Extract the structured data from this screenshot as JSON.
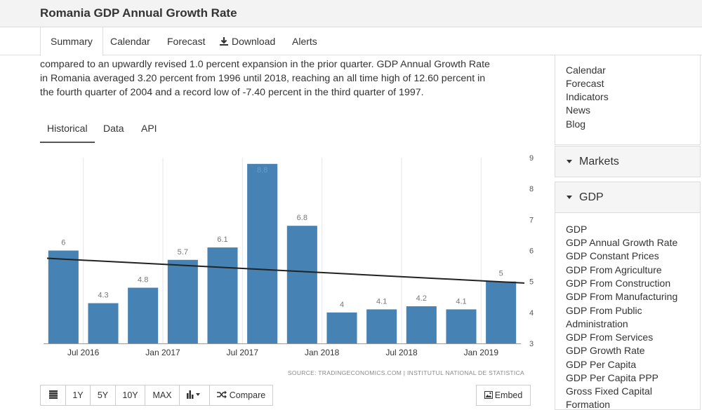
{
  "header": {
    "title": "Romania GDP Annual Growth Rate"
  },
  "tabs": [
    {
      "label": "Summary"
    },
    {
      "label": "Calendar"
    },
    {
      "label": "Forecast"
    },
    {
      "label": "Download"
    },
    {
      "label": "Alerts"
    }
  ],
  "summary": {
    "line1": "compared to an upwardly revised 1.0 percent expansion in the prior quarter. GDP Annual Growth Rate",
    "line2": "in Romania averaged 3.20 percent from 1996 until 2018, reaching an all time high of 12.60 percent in",
    "line3": "the fourth quarter of 2004 and a record low of -7.40 percent in the third quarter of 1997."
  },
  "chart_tabs": [
    {
      "label": "Historical"
    },
    {
      "label": "Data"
    },
    {
      "label": "API"
    }
  ],
  "chart_data": {
    "type": "bar",
    "categories": [
      "Q2 2016",
      "Q3 2016",
      "Q4 2016",
      "Q1 2017",
      "Q2 2017",
      "Q3 2017",
      "Q4 2017",
      "Q1 2018",
      "Q2 2018",
      "Q3 2018",
      "Q4 2018",
      "Q1 2019"
    ],
    "values": [
      6,
      4.3,
      4.8,
      5.7,
      6.1,
      8.8,
      6.8,
      4,
      4.1,
      4.2,
      4.1,
      5
    ],
    "data_labels": [
      "6",
      "4.3",
      "4.8",
      "5.7",
      "6.1",
      "8.8",
      "6.8",
      "4",
      "4.1",
      "4.2",
      "4.1",
      "5"
    ],
    "x_tick_labels": [
      "Jul 2016",
      "Jan 2017",
      "Jul 2017",
      "Jan 2018",
      "Jul 2018",
      "Jan 2019"
    ],
    "x_tick_positions": [
      0.5,
      2.5,
      4.5,
      6.5,
      8.5,
      10.5
    ],
    "ylim": [
      3,
      9
    ],
    "y_ticks": [
      3,
      4,
      5,
      6,
      7,
      8,
      9
    ],
    "y_axis_side": "right",
    "grid": "vertical",
    "trendline": {
      "start": 5.75,
      "end": 4.95
    },
    "bar_color": "#4682b4",
    "source": "SOURCE: TRADINGECONOMICS.COM  |  INSTITUTUL NATIONAL DE STATISTICA"
  },
  "toolbar": {
    "buttons": [
      {
        "label": ""
      },
      {
        "label": "1Y"
      },
      {
        "label": "5Y"
      },
      {
        "label": "10Y"
      },
      {
        "label": "MAX"
      },
      {
        "label": ""
      },
      {
        "label": "Compare"
      }
    ],
    "embed_label": "Embed"
  },
  "sidebar": {
    "links_top": [
      "Calendar",
      "Forecast",
      "Indicators",
      "News",
      "Blog"
    ],
    "markets_label": "Markets",
    "gdp_label": "GDP",
    "gdp_links": [
      "GDP",
      "GDP Annual Growth Rate",
      "GDP Constant Prices",
      "GDP From Agriculture",
      "GDP From Construction",
      "GDP From Manufacturing",
      "GDP From Public",
      "Administration",
      "GDP From Services",
      "GDP Growth Rate",
      "GDP Per Capita",
      "GDP Per Capita PPP",
      "Gross Fixed Capital",
      "Formation"
    ]
  },
  "icons": {
    "table": "table-icon",
    "chart_type": "bar-chart-icon",
    "compare": "shuffle-icon",
    "embed": "image-icon",
    "download": "download-icon"
  }
}
